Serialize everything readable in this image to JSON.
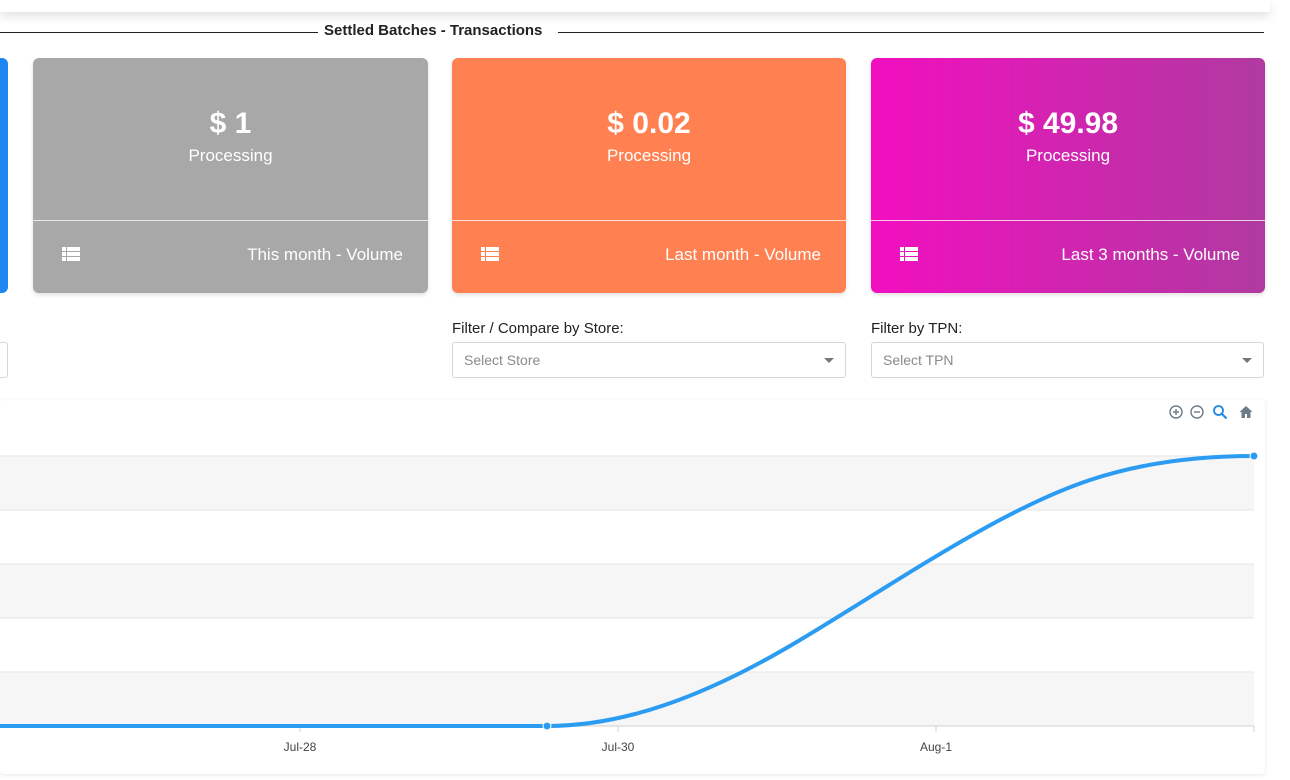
{
  "section": {
    "title": "Settled Batches - Transactions"
  },
  "cards": [
    {
      "value": "$ 1",
      "label": "Processing",
      "footer": "This month - Volume",
      "color": "#a8a8a8",
      "icon": "table-icon"
    },
    {
      "value": "$ 0.02",
      "label": "Processing",
      "footer": "Last month - Volume",
      "color": "#ff8050",
      "icon": "table-icon"
    },
    {
      "value": "$ 49.98",
      "label": "Processing",
      "footer": "Last 3 months - Volume",
      "color": "#f20fc0",
      "icon": "table-icon"
    }
  ],
  "filters": {
    "store": {
      "label": "Filter / Compare by Store:",
      "placeholder": "Select Store"
    },
    "tpn": {
      "label": "Filter by TPN:",
      "placeholder": "Select TPN"
    }
  },
  "chart_toolbar": [
    "zoom-in-icon",
    "zoom-out-icon",
    "zoom-selection-icon",
    "reset-home-icon"
  ],
  "chart_data": {
    "type": "area",
    "x_ticks": [
      "Jul-28",
      "Jul-30",
      "Aug-1"
    ],
    "series_color": "#2b9cf2",
    "grid": true
  }
}
